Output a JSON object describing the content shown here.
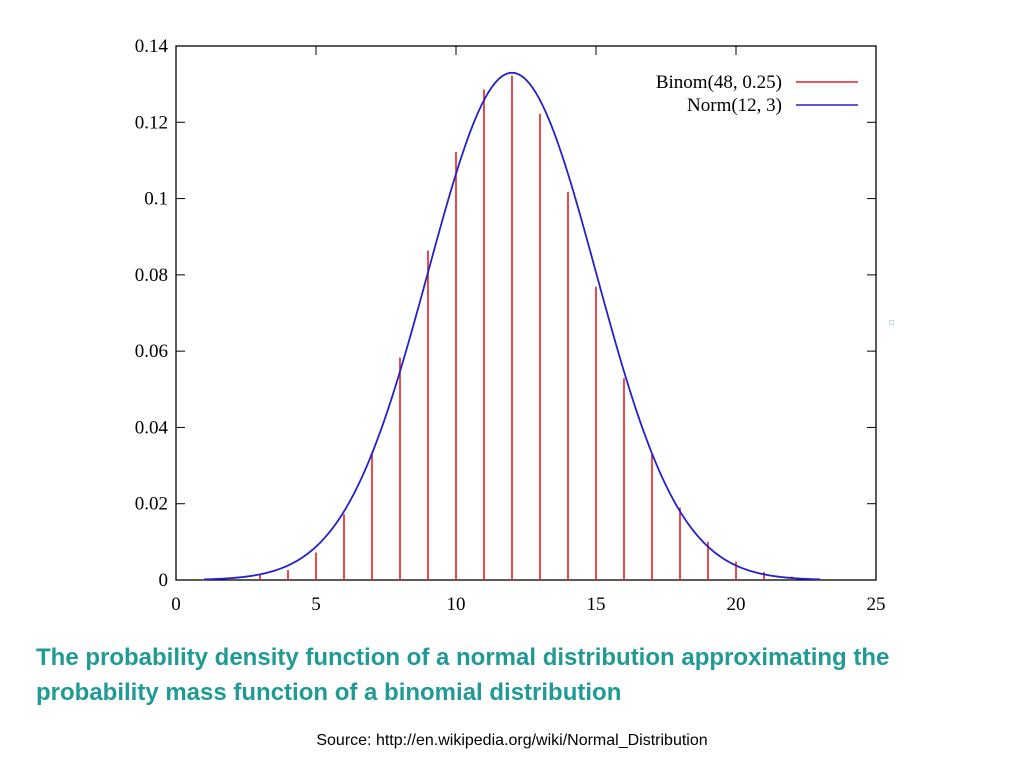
{
  "chart_data": {
    "type": "bar",
    "xlim": [
      0,
      25
    ],
    "ylim": [
      0,
      0.14
    ],
    "x_ticks": [
      "0",
      "5",
      "10",
      "15",
      "20",
      "25"
    ],
    "y_ticks": [
      "0",
      "0.02",
      "0.04",
      "0.06",
      "0.08",
      "0.1",
      "0.12",
      "0.14"
    ],
    "legend_position": "top-right",
    "grid": false,
    "series": [
      {
        "name": "Binom(48, 0.25)",
        "kind": "impulses",
        "color": "#e02020",
        "x": [
          0,
          1,
          2,
          3,
          4,
          5,
          6,
          7,
          8,
          9,
          10,
          11,
          12,
          13,
          14,
          15,
          16,
          17,
          18,
          19,
          20,
          21,
          22,
          23,
          24,
          25
        ],
        "values": [
          0.0,
          0.0001,
          0.0005,
          0.0016,
          0.0026,
          0.0072,
          0.0172,
          0.0334,
          0.0583,
          0.0864,
          0.1122,
          0.1286,
          0.1322,
          0.1222,
          0.1018,
          0.0769,
          0.0529,
          0.0332,
          0.019,
          0.01,
          0.0048,
          0.0021,
          0.0009,
          0.0003,
          0.0001,
          0.0
        ]
      },
      {
        "name": "Norm(12, 3)",
        "kind": "curve",
        "color": "#2222cc",
        "mean": 12,
        "sd": 3,
        "x_range": [
          1,
          23
        ]
      }
    ]
  },
  "caption": "The probability density function of a normal distribution approximating the probability mass function of a binomial distribution",
  "source": "Source: http://en.wikipedia.org/wiki/Normal_Distribution"
}
